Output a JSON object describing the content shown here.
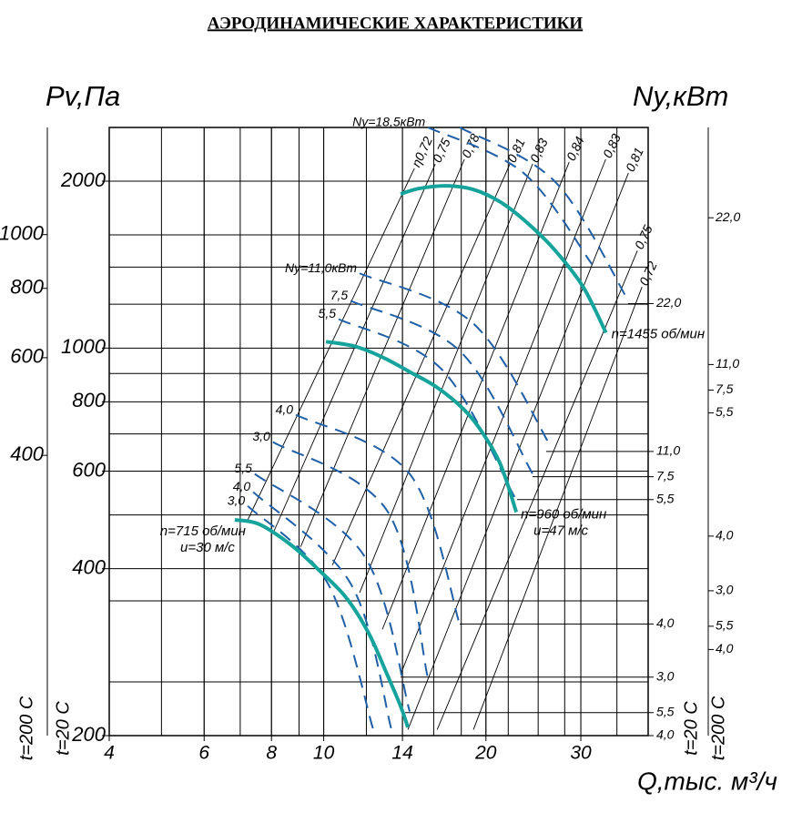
{
  "chart_data": {
    "type": "line",
    "title": "АЭРОДИНАМИЧЕСКИЕ ХАРАКТЕРИСТИКИ",
    "y_label": "Pv,Па",
    "y2_label": "Ny,кВт",
    "x_label": "Q,тыс. м³/ч",
    "side_labels": [
      "t=200 С",
      "t=20 С",
      "t=20 С",
      "t=200 С"
    ],
    "xscale": "log",
    "yscale": "log",
    "xlim": [
      4,
      40
    ],
    "ylim": [
      200,
      2500
    ],
    "xticks": [
      4,
      6,
      8,
      10,
      14,
      20,
      30
    ],
    "yticks": [
      2000,
      1000,
      800,
      600,
      400,
      200
    ],
    "xgrid": [
      5,
      6,
      7,
      8,
      9,
      10,
      12,
      14,
      16,
      18,
      20,
      22,
      25,
      28,
      30,
      35
    ],
    "ygrid": [
      1600,
      1400,
      1200,
      900,
      700,
      500,
      350,
      250
    ],
    "y2lim": [
      125,
      1560
    ],
    "y2ticks": [
      1000,
      800,
      600,
      400
    ],
    "grid": true,
    "series": [
      {
        "name": "n=715 об/мин",
        "note": "u=30 м/с",
        "color": "#15a39c",
        "x": [
          6.84,
          7.6,
          8.71,
          9.79,
          11.0,
          12.12,
          13.11,
          13.89,
          14.33
        ],
        "values": [
          490,
          481,
          441,
          398,
          355,
          306,
          258,
          226,
          207
        ]
      },
      {
        "name": "n=960 об/мин",
        "note": "u=47 м/с",
        "color": "#15a39c",
        "x": [
          10.1,
          11.44,
          12.85,
          14.44,
          16.24,
          18.25,
          19.72,
          21.31,
          22.77
        ],
        "values": [
          1027,
          1007,
          963,
          906,
          849,
          773,
          703,
          615,
          506
        ]
      },
      {
        "name": "n=1455 об/мин",
        "color": "#15a39c",
        "x": [
          13.89,
          15.02,
          16.88,
          18.96,
          21.3,
          23.9,
          26.9,
          30.3,
          33.4
        ],
        "values": [
          1896,
          1940,
          1962,
          1932,
          1833,
          1680,
          1499,
          1289,
          1066
        ]
      }
    ],
    "power_curves": [
      {
        "name": "Ny=18,5кВт",
        "color": "#1f5fa8",
        "x": [
          15.62,
          23.49,
          31.46
        ],
        "values": [
          2500,
          2069,
          1417
        ]
      },
      {
        "color": "#1f5fa8",
        "x": [
          17.89,
          26.92,
          36.76
        ],
        "values": [
          2500,
          1992,
          1217
        ]
      },
      {
        "name": "Ny=11,0кВт",
        "color": "#1f5fa8",
        "x": [
          11.66,
          18.96,
          26.4
        ],
        "values": [
          1364,
          1107,
          664
        ]
      },
      {
        "name": "7,5",
        "color": "#1f5fa8",
        "x": [
          11.22,
          17.89,
          24.42
        ],
        "values": [
          1217,
          988,
          593
        ]
      },
      {
        "name": "5,5",
        "color": "#1f5fa8",
        "x": [
          10.66,
          16.55,
          22.6
        ],
        "values": [
          1128,
          916,
          539
        ]
      },
      {
        "name": "4,0",
        "color": "#1f5fa8",
        "x": [
          8.88,
          14.44,
          17.89
        ],
        "values": [
          758,
          593,
          317
        ]
      },
      {
        "name": "3,0",
        "color": "#1f5fa8",
        "x": [
          8.05,
          13.11,
          15.62
        ],
        "values": [
          677,
          509,
          253
        ]
      },
      {
        "name": "5,5",
        "color": "#1f5fa8",
        "x": [
          7.45,
          11.89,
          14.44
        ],
        "values": [
          593,
          422,
          221
        ]
      },
      {
        "name": "4,0",
        "color": "#1f5fa8",
        "x": [
          7.4,
          11.22,
          13.36
        ],
        "values": [
          550,
          376,
          205
        ]
      },
      {
        "name": "3,0",
        "color": "#1f5fa8",
        "x": [
          7.23,
          10.18,
          12.36
        ],
        "values": [
          519,
          376,
          205
        ]
      }
    ],
    "eta_lines": [
      {
        "label": "η0,72",
        "x": [
          7.23,
          14.73
        ],
        "values": [
          490,
          2108
        ]
      },
      {
        "label": "0,75",
        "x": [
          8.05,
          16.11
        ],
        "values": [
          463,
          2149
        ]
      },
      {
        "label": "0,78",
        "x": [
          9.06,
          18.24
        ],
        "values": [
          438,
          2190
        ]
      },
      {
        "label": "0,81",
        "x": [
          10.38,
          22.16
        ],
        "values": [
          406,
          2149
        ]
      },
      {
        "label": "0,83",
        "x": [
          11.66,
          24.42
        ],
        "values": [
          362,
          2149
        ]
      },
      {
        "label": "0,84",
        "x": [
          12.85,
          28.54
        ],
        "values": [
          311,
          2165
        ]
      },
      {
        "label": "0,83",
        "x": [
          13.89,
          33.36
        ],
        "values": [
          258,
          2190
        ]
      },
      {
        "label": "0,81",
        "x": [
          14.33,
          36.76
        ],
        "values": [
          205,
          2069
        ]
      },
      {
        "label": "0,75",
        "x": [
          16.24,
          38.2
        ],
        "values": [
          205,
          1499
        ]
      },
      {
        "label": "0,72",
        "x": [
          18.96,
          38.96
        ],
        "values": [
          205,
          1289
        ]
      }
    ],
    "ny_ticks_inner": [
      {
        "value": 1203,
        "label": "22,0"
      },
      {
        "value": 651,
        "label": "11,0"
      },
      {
        "value": 586,
        "label": "7,5"
      },
      {
        "value": 533,
        "label": "5,5"
      },
      {
        "value": 318,
        "label": "4,0"
      },
      {
        "value": 255,
        "label": "3,0"
      },
      {
        "value": 220,
        "label": "5,5"
      },
      {
        "value": 200,
        "label": "4,0"
      }
    ],
    "ny_ticks_outer": [
      {
        "value": 1718,
        "label": "22,0"
      },
      {
        "value": 934,
        "label": "11,0"
      },
      {
        "value": 840,
        "label": "7,5"
      },
      {
        "value": 764,
        "label": "5,5"
      },
      {
        "value": 458,
        "label": "4,0"
      },
      {
        "value": 365,
        "label": "3,0"
      },
      {
        "value": 315,
        "label": "5,5"
      },
      {
        "value": 286,
        "label": "4,0"
      }
    ]
  }
}
